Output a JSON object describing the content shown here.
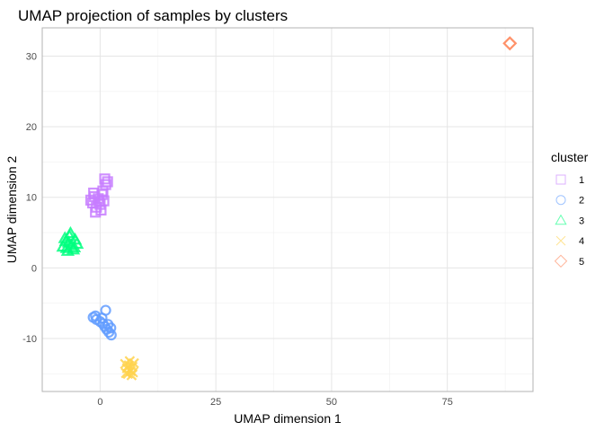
{
  "chart_data": {
    "type": "scatter",
    "title": "UMAP projection of samples by clusters",
    "xlabel": "UMAP dimension 1",
    "ylabel": "UMAP dimension 2",
    "xlim": [
      -12.5,
      93.5
    ],
    "ylim": [
      -17.5,
      34
    ],
    "xticks": [
      0,
      25,
      50,
      75
    ],
    "yticks": [
      -10,
      0,
      10,
      20,
      30
    ],
    "grid": true,
    "legend": {
      "title": "cluster",
      "position": "right"
    },
    "series": [
      {
        "name": "1",
        "marker": "square",
        "color": "#C77CFF",
        "points": [
          [
            -1.6,
            9.2
          ],
          [
            -1.2,
            10.1
          ],
          [
            -0.8,
            8.6
          ],
          [
            -0.4,
            9.8
          ],
          [
            0.0,
            9.0
          ],
          [
            0.4,
            10.4
          ],
          [
            0.8,
            9.5
          ],
          [
            1.2,
            11.8
          ],
          [
            1.0,
            12.6
          ],
          [
            0.2,
            8.2
          ],
          [
            -1.0,
            7.9
          ],
          [
            -2.0,
            9.6
          ],
          [
            1.6,
            12.2
          ],
          [
            0.6,
            10.9
          ],
          [
            -0.2,
            9.4
          ],
          [
            -1.4,
            10.6
          ]
        ]
      },
      {
        "name": "2",
        "marker": "circle",
        "color": "#619CFF",
        "points": [
          [
            -1.5,
            -7.0
          ],
          [
            -0.8,
            -7.3
          ],
          [
            0.0,
            -7.6
          ],
          [
            0.6,
            -7.9
          ],
          [
            1.0,
            -8.3
          ],
          [
            1.4,
            -8.7
          ],
          [
            1.9,
            -9.1
          ],
          [
            2.3,
            -8.5
          ],
          [
            2.4,
            -9.5
          ],
          [
            1.2,
            -6.0
          ],
          [
            0.4,
            -7.1
          ],
          [
            -1.0,
            -6.8
          ],
          [
            1.7,
            -8.0
          ]
        ]
      },
      {
        "name": "3",
        "marker": "triangle",
        "color": "#00FF7F",
        "points": [
          [
            -8.0,
            3.0
          ],
          [
            -7.4,
            3.8
          ],
          [
            -7.0,
            2.4
          ],
          [
            -6.6,
            4.5
          ],
          [
            -6.2,
            3.2
          ],
          [
            -5.8,
            2.6
          ],
          [
            -5.4,
            4.0
          ],
          [
            -5.0,
            3.4
          ],
          [
            -6.8,
            3.6
          ],
          [
            -7.6,
            4.2
          ],
          [
            -5.6,
            2.9
          ],
          [
            -6.4,
            4.9
          ],
          [
            -7.2,
            2.8
          ]
        ]
      },
      {
        "name": "4",
        "marker": "x",
        "color": "#FFD24D",
        "points": [
          [
            5.4,
            -13.6
          ],
          [
            5.8,
            -14.2
          ],
          [
            6.2,
            -13.8
          ],
          [
            6.6,
            -14.6
          ],
          [
            7.0,
            -14.0
          ],
          [
            7.3,
            -13.5
          ],
          [
            6.0,
            -15.0
          ],
          [
            6.8,
            -15.2
          ],
          [
            5.6,
            -14.9
          ],
          [
            6.4,
            -13.2
          ],
          [
            7.1,
            -14.8
          ]
        ]
      },
      {
        "name": "5",
        "marker": "diamond",
        "color": "#FF7F50",
        "points": [
          [
            88.5,
            31.8
          ]
        ]
      }
    ]
  }
}
